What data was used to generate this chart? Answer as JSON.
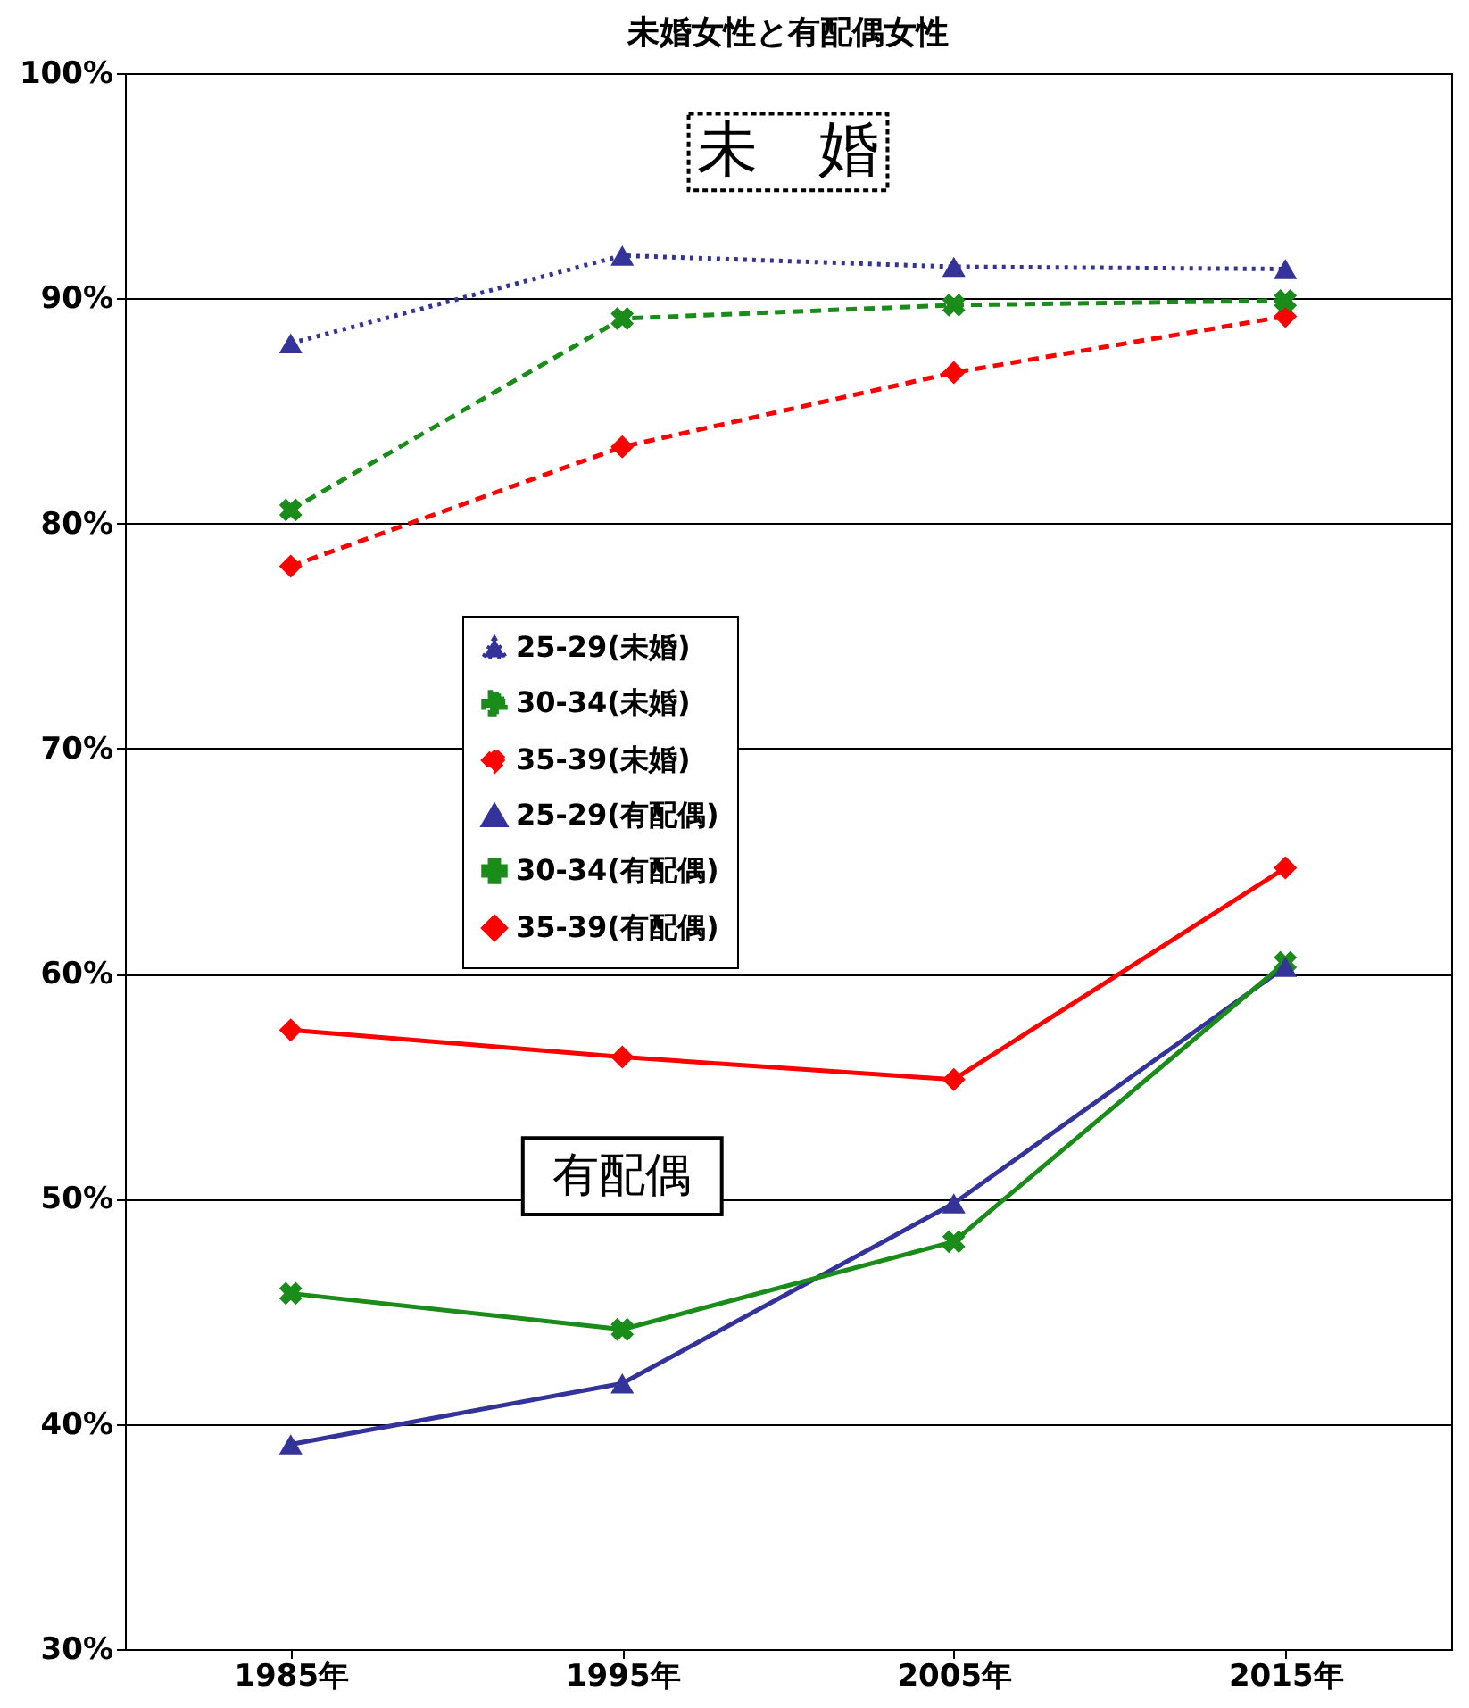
{
  "chart_data": {
    "type": "line",
    "title": "未婚女性と有配偶女性",
    "categories": [
      "1985年",
      "1995年",
      "2005年",
      "2015年"
    ],
    "series": [
      {
        "name": "25-29(未婚)",
        "color": "#333399",
        "values": [
          88.0,
          91.9,
          91.4,
          91.3
        ],
        "marker": "triangle",
        "line_style": "dotted"
      },
      {
        "name": "30-34(未婚)",
        "color": "#1a8c1a",
        "values": [
          80.6,
          89.1,
          89.7,
          89.9
        ],
        "marker": "cross",
        "line_style": "dashed"
      },
      {
        "name": "35-39(未婚)",
        "color": "#ff0000",
        "values": [
          78.1,
          83.4,
          86.7,
          89.2
        ],
        "marker": "diamond",
        "line_style": "dashed"
      },
      {
        "name": "25-29(有配偶)",
        "color": "#333399",
        "values": [
          39.1,
          41.8,
          49.8,
          60.3
        ],
        "marker": "triangle",
        "line_style": "solid"
      },
      {
        "name": "30-34(有配偶)",
        "color": "#1a8c1a",
        "values": [
          45.8,
          44.2,
          48.1,
          60.5
        ],
        "marker": "cross",
        "line_style": "solid"
      },
      {
        "name": "35-39(有配偶)",
        "color": "#ff0000",
        "values": [
          57.5,
          56.3,
          55.3,
          64.7
        ],
        "marker": "diamond",
        "line_style": "solid"
      }
    ],
    "ylim": [
      30,
      100
    ],
    "yticks": [
      {
        "value": 30,
        "label": "30%"
      },
      {
        "value": 40,
        "label": "40%"
      },
      {
        "value": 50,
        "label": "50%"
      },
      {
        "value": 60,
        "label": "60%"
      },
      {
        "value": 70,
        "label": "70%"
      },
      {
        "value": 80,
        "label": "80%"
      },
      {
        "value": 90,
        "label": "90%"
      },
      {
        "value": 100,
        "label": "100%"
      }
    ],
    "grid": "y",
    "legend": "center",
    "annotations": [
      "未　婚",
      "有配偶"
    ]
  }
}
